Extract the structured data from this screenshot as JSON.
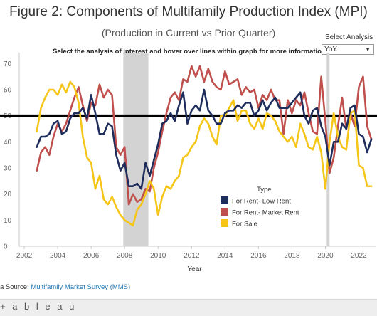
{
  "header": {
    "title": "Figure 2: Components of Multifamily Production Index (MPI)",
    "subtitle": "(Production in Current vs Prior Quarter)",
    "instructions": "Select the analysis of interest and hover over lines within graph for more information."
  },
  "filter": {
    "label": "Select Analysis",
    "selected": "YoY",
    "caret": "▼"
  },
  "footer": {
    "source_prefix": "a Source: ",
    "source_link": "Multifamily Market Survey (MMS)",
    "logo": "+ a b l e a u"
  },
  "chart_data": {
    "type": "line",
    "xlabel": "Year",
    "ylabel": "",
    "xlim": [
      2001.7,
      2023.0
    ],
    "ylim": [
      0,
      72
    ],
    "x_ticks": [
      2002,
      2004,
      2006,
      2008,
      2010,
      2012,
      2014,
      2016,
      2018,
      2020,
      2022
    ],
    "y_ticks": [
      0,
      10,
      20,
      30,
      40,
      50,
      60,
      70
    ],
    "reference_line": 50,
    "shaded_periods": [
      {
        "start": 2007.92,
        "end": 2009.42
      },
      {
        "start": 2020.08,
        "end": 2020.25
      }
    ],
    "legend": {
      "title": "Type",
      "position": "lower-center"
    },
    "series": [
      {
        "name": "For Rent- Low Rent",
        "color": "#1f2d5c",
        "x": [
          2002.75,
          2003.0,
          2003.25,
          2003.5,
          2003.75,
          2004.0,
          2004.25,
          2004.5,
          2004.75,
          2005.0,
          2005.25,
          2005.5,
          2005.75,
          2006.0,
          2006.25,
          2006.5,
          2006.75,
          2007.0,
          2007.25,
          2007.5,
          2007.75,
          2008.0,
          2008.25,
          2008.5,
          2008.75,
          2009.0,
          2009.25,
          2009.5,
          2009.75,
          2010.0,
          2010.25,
          2010.5,
          2010.75,
          2011.0,
          2011.25,
          2011.5,
          2011.75,
          2012.0,
          2012.25,
          2012.5,
          2012.75,
          2013.0,
          2013.25,
          2013.5,
          2013.75,
          2014.0,
          2014.25,
          2014.5,
          2014.75,
          2015.0,
          2015.25,
          2015.5,
          2015.75,
          2016.0,
          2016.25,
          2016.5,
          2016.75,
          2017.0,
          2017.25,
          2017.5,
          2017.75,
          2018.0,
          2018.25,
          2018.5,
          2018.75,
          2019.0,
          2019.25,
          2019.5,
          2019.75,
          2020.0,
          2020.25,
          2020.5,
          2020.75,
          2021.0,
          2021.25,
          2021.5,
          2021.75,
          2022.0,
          2022.25,
          2022.5,
          2022.75
        ],
        "values": [
          38,
          42,
          42,
          43,
          47,
          48,
          43,
          44,
          49,
          51,
          51,
          53,
          49,
          58,
          51,
          43,
          43,
          47,
          46,
          35,
          29,
          32,
          23,
          23,
          24,
          22,
          32,
          27,
          33,
          39,
          47,
          48,
          51,
          48,
          54,
          59,
          47,
          52,
          54,
          52,
          60,
          52,
          50,
          47,
          47,
          51,
          52,
          52,
          54,
          53,
          55,
          55,
          50,
          52,
          56,
          52,
          55,
          57,
          53,
          53,
          53,
          55,
          57,
          59,
          50,
          47,
          52,
          53,
          46,
          42,
          31,
          40,
          40,
          47,
          45,
          53,
          54,
          43,
          42,
          36,
          41
        ]
      },
      {
        "name": "For Rent- Market Rent",
        "color": "#c0504d",
        "x": [
          2002.75,
          2003.0,
          2003.25,
          2003.5,
          2003.75,
          2004.0,
          2004.25,
          2004.5,
          2004.75,
          2005.0,
          2005.25,
          2005.5,
          2005.75,
          2006.0,
          2006.25,
          2006.5,
          2006.75,
          2007.0,
          2007.25,
          2007.5,
          2007.75,
          2008.0,
          2008.25,
          2008.5,
          2008.75,
          2009.0,
          2009.25,
          2009.5,
          2009.75,
          2010.0,
          2010.25,
          2010.5,
          2010.75,
          2011.0,
          2011.25,
          2011.5,
          2011.75,
          2012.0,
          2012.25,
          2012.5,
          2012.75,
          2013.0,
          2013.25,
          2013.5,
          2013.75,
          2014.0,
          2014.25,
          2014.5,
          2014.75,
          2015.0,
          2015.25,
          2015.5,
          2015.75,
          2016.0,
          2016.25,
          2016.5,
          2016.75,
          2017.0,
          2017.25,
          2017.5,
          2017.75,
          2018.0,
          2018.25,
          2018.5,
          2018.75,
          2019.0,
          2019.25,
          2019.5,
          2019.75,
          2020.0,
          2020.25,
          2020.5,
          2020.75,
          2021.0,
          2021.25,
          2021.5,
          2021.75,
          2022.0,
          2022.25,
          2022.5,
          2022.75
        ],
        "values": [
          29,
          36,
          38,
          35,
          42,
          47,
          44,
          47,
          52,
          57,
          61,
          54,
          48,
          55,
          54,
          62,
          57,
          60,
          58,
          38,
          35,
          38,
          16,
          20,
          17,
          18,
          22,
          21,
          30,
          36,
          44,
          51,
          57,
          59,
          56,
          64,
          63,
          69,
          65,
          69,
          63,
          68,
          63,
          61,
          60,
          67,
          62,
          63,
          64,
          58,
          61,
          59,
          60,
          53,
          58,
          56,
          60,
          56,
          56,
          43,
          56,
          51,
          56,
          54,
          59,
          51,
          44,
          43,
          65,
          48,
          28,
          34,
          46,
          57,
          45,
          51,
          46,
          61,
          65,
          46,
          41
        ]
      },
      {
        "name": "For Sale",
        "color": "#f5c518",
        "x": [
          2002.75,
          2003.0,
          2003.25,
          2003.5,
          2003.75,
          2004.0,
          2004.25,
          2004.5,
          2004.75,
          2005.0,
          2005.25,
          2005.5,
          2005.75,
          2006.0,
          2006.25,
          2006.5,
          2006.75,
          2007.0,
          2007.25,
          2007.5,
          2007.75,
          2008.0,
          2008.25,
          2008.5,
          2008.75,
          2009.0,
          2009.25,
          2009.5,
          2009.75,
          2010.0,
          2010.25,
          2010.5,
          2010.75,
          2011.0,
          2011.25,
          2011.5,
          2011.75,
          2012.0,
          2012.25,
          2012.5,
          2012.75,
          2013.0,
          2013.25,
          2013.5,
          2013.75,
          2014.0,
          2014.25,
          2014.5,
          2014.75,
          2015.0,
          2015.25,
          2015.5,
          2015.75,
          2016.0,
          2016.25,
          2016.5,
          2016.75,
          2017.0,
          2017.25,
          2017.5,
          2017.75,
          2018.0,
          2018.25,
          2018.5,
          2018.75,
          2019.0,
          2019.25,
          2019.5,
          2019.75,
          2020.0,
          2020.25,
          2020.5,
          2020.75,
          2021.0,
          2021.25,
          2021.5,
          2021.75,
          2022.0,
          2022.25,
          2022.5,
          2022.75
        ],
        "values": [
          44,
          53,
          57,
          60,
          60,
          58,
          62,
          59,
          63,
          61,
          55,
          42,
          34,
          32,
          22,
          27,
          18,
          16,
          19,
          15,
          12,
          10,
          9,
          8,
          14,
          16,
          20,
          25,
          22,
          12,
          19,
          23,
          22,
          25,
          27,
          34,
          35,
          38,
          40,
          46,
          49,
          47,
          42,
          39,
          50,
          50,
          53,
          56,
          48,
          52,
          52,
          47,
          45,
          49,
          45,
          51,
          50,
          48,
          44,
          42,
          40,
          42,
          38,
          47,
          43,
          38,
          37,
          42,
          36,
          22,
          40,
          51,
          42,
          38,
          37,
          51,
          52,
          31,
          30,
          23,
          23
        ]
      }
    ]
  }
}
